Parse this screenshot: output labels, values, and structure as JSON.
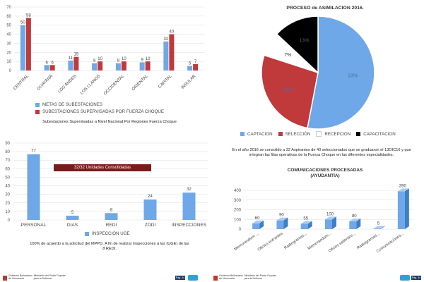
{
  "chart_data": [
    {
      "type": "bar",
      "categories": [
        "CENTRAL",
        "GUAYANA",
        "LOS ANDES",
        "LOS LLANOS",
        "OCCIDENTAL",
        "ORIENTAL",
        "CAPITAL",
        "INSULAR"
      ],
      "series": [
        {
          "name": "METAS DE SUBESTACIONES",
          "values": [
            50,
            6,
            11,
            8,
            8,
            9,
            32,
            5
          ],
          "color": "#6fa8e8"
        },
        {
          "name": "SUBESTACIONES SUPERVISADAS POR FUERZA CHOQUE",
          "values": [
            58,
            6,
            15,
            10,
            10,
            10,
            40,
            7
          ],
          "color": "#c0393b"
        }
      ],
      "ylim": [
        0,
        70
      ],
      "yticks": [
        0,
        10,
        20,
        30,
        40,
        50,
        60,
        70
      ],
      "grid": true,
      "legend": "bottom",
      "caption": "Subestaciones Supervisadas a Nivel Nacional Por Regiones Fuerza Choque"
    },
    {
      "type": "pie",
      "title": "PROCESO de ASIMILACION 2016.",
      "labels": [
        "CAPTACION",
        "SELECCIÓN",
        "RECEPCION",
        "CAPACITACION"
      ],
      "values": [
        53,
        27,
        7,
        13
      ],
      "value_labels": [
        "53%",
        "27%",
        "7%",
        "13%"
      ],
      "colors": [
        "#6fa8e8",
        "#c0393b",
        "#ffffff",
        "#000000"
      ],
      "legend": "bottom",
      "caption": "En el año 2016 se consolido a 32 Aspirantes de 40 seleccionados que se graduaron el 13OIC16 y que integran las filas operativas de la Fuerza Choque en las diferentes especialidades."
    },
    {
      "type": "bar",
      "categories": [
        "PERSONAL",
        "DIAS",
        "REDI",
        "ZODI",
        "INSPECCIONES"
      ],
      "series": [
        {
          "name": "INSPECCIÓN UGE",
          "values": [
            77,
            5,
            8,
            24,
            32
          ],
          "color": "#6fa8e8"
        }
      ],
      "ylim": [
        0,
        90
      ],
      "yticks": [
        0,
        10,
        20,
        30,
        40,
        50,
        60,
        70,
        80,
        90
      ],
      "grid": true,
      "legend": "bottom",
      "annotation": "32/32 Unidades Consolidadas",
      "caption": "100% de acuerdo a la solicitud del MPPD. A fin de realizar inspecciones a las (UGE) de las 8 REDI."
    },
    {
      "type": "bar",
      "title": "COMUNICACIONES PROCESADAS",
      "subtitle": "(AYUDANTIA)",
      "categories": [
        "Memorandum ...",
        "Oficios entrantes",
        "Radiogramas...",
        "Memorandum...",
        "Oficios salientes...",
        "Radiogramas...",
        "Comunicaciones..."
      ],
      "values": [
        60,
        90,
        55,
        100,
        80,
        5,
        390
      ],
      "ylim": [
        0,
        400
      ],
      "yticks": [
        0,
        100,
        200,
        300,
        400
      ],
      "grid": true,
      "color": "#6fa8e8"
    }
  ],
  "annotation_color": "#7a1c1c",
  "footer": {
    "page_label": "Pág. 44",
    "brand_line1": "Gobierno Bolivariano",
    "brand_line2": "de Venezuela",
    "ministry_line1": "Ministerio del Poder Popular",
    "ministry_line2": "para la Defensa"
  }
}
